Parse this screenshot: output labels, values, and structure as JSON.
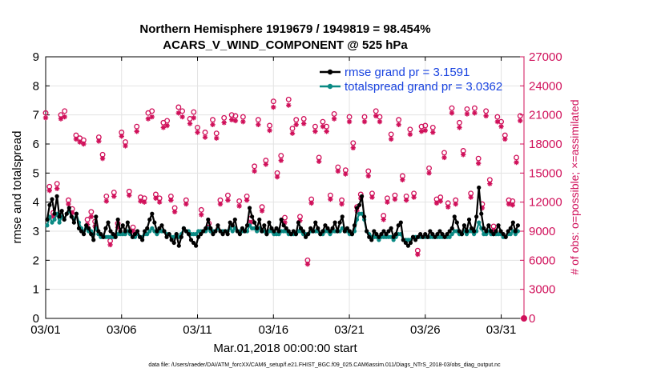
{
  "chart_data": {
    "type": "line",
    "title_line1": "Northern Hemisphere 1919679 / 1949819 = 98.454%",
    "title_line2": "ACARS_V_WIND_COMPONENT @ 525 hPa",
    "xlabel": "Mar.01,2018 00:00:00 start",
    "ylabel": "rmse and totalspread",
    "ylabel_right": "# of obs: o=possible; ×=assimilated",
    "xlim": [
      0,
      31.5
    ],
    "ylim": [
      0,
      9
    ],
    "ylim_right": [
      0,
      27000
    ],
    "x_tick_values": [
      0,
      5,
      10,
      15,
      20,
      25,
      30
    ],
    "x_tick_labels": [
      "03/01",
      "03/06",
      "03/11",
      "03/16",
      "03/21",
      "03/26",
      "03/31"
    ],
    "y_tick_labels": [
      "0",
      "1",
      "2",
      "3",
      "4",
      "5",
      "6",
      "7",
      "8",
      "9"
    ],
    "y_right_tick_labels": [
      "0",
      "3000",
      "6000",
      "9000",
      "12000",
      "15000",
      "18000",
      "21000",
      "24000",
      "27000"
    ],
    "legend_position": "top-right",
    "colors": {
      "rmse": "#000000",
      "spread": "#0a8a84",
      "obs": "#d0105a",
      "legend_text": "#1a44e0"
    },
    "series": [
      {
        "name": "rmse grand pr = 3.1591",
        "key": "rmse",
        "values": [
          3.4,
          3.9,
          4.1,
          3.6,
          4.2,
          3.5,
          3.7,
          3.4,
          3.6,
          3.8,
          3.5,
          3.3,
          3.6,
          3.1,
          3.0,
          2.9,
          3.2,
          3.1,
          2.9,
          2.7,
          3.5,
          3.0,
          2.9,
          2.8,
          3.1,
          3.3,
          3.0,
          2.9,
          2.8,
          3.4,
          3.0,
          3.2,
          3.0,
          3.3,
          3.0,
          2.8,
          2.9,
          3.0,
          2.8,
          2.7,
          3.0,
          3.1,
          3.4,
          3.6,
          3.3,
          3.0,
          3.1,
          3.2,
          3.0,
          2.8,
          2.9,
          2.7,
          2.6,
          2.9,
          2.5,
          2.8,
          3.1,
          3.0,
          2.9,
          2.7,
          2.6,
          2.5,
          2.8,
          2.9,
          3.0,
          3.1,
          3.4,
          3.1,
          2.9,
          3.0,
          3.2,
          3.0,
          2.9,
          3.0,
          2.9,
          3.3,
          3.2,
          3.4,
          3.0,
          2.9,
          3.1,
          3.0,
          3.2,
          3.8,
          3.5,
          3.3,
          3.1,
          3.4,
          3.0,
          3.2,
          2.9,
          3.3,
          3.1,
          3.0,
          3.1,
          3.0,
          3.4,
          3.2,
          3.1,
          3.0,
          2.9,
          3.0,
          2.9,
          3.3,
          3.1,
          3.0,
          2.8,
          2.9,
          3.1,
          3.0,
          3.3,
          3.1,
          2.9,
          3.0,
          3.2,
          3.1,
          3.0,
          3.1,
          3.3,
          3.0,
          3.3,
          3.5,
          3.0,
          3.1,
          3.0,
          2.9,
          3.2,
          3.8,
          3.9,
          4.2,
          3.5,
          3.0,
          2.8,
          2.7,
          3.0,
          2.9,
          2.8,
          2.9,
          3.0,
          2.9,
          3.0,
          3.1,
          2.8,
          2.9,
          3.2,
          3.3,
          2.7,
          2.6,
          2.5,
          2.6,
          2.8,
          2.7,
          2.8,
          2.9,
          2.8,
          2.9,
          2.8,
          3.0,
          2.9,
          2.8,
          2.9,
          3.0,
          2.9,
          2.8,
          2.9,
          3.0,
          3.1,
          3.5,
          3.3,
          3.0,
          2.9,
          3.2,
          3.0,
          3.4,
          3.1,
          3.0,
          3.5,
          4.5,
          3.6,
          3.1,
          3.0,
          3.2,
          3.0,
          2.9,
          3.0,
          3.2,
          3.0,
          2.9,
          2.8,
          3.0,
          3.1,
          3.3,
          3.0,
          3.2
        ]
      },
      {
        "name": "totalspread grand pr = 3.0362",
        "key": "spread",
        "values": [
          3.2,
          3.5,
          3.3,
          3.4,
          3.6,
          3.3,
          3.5,
          3.4,
          3.6,
          3.7,
          3.5,
          3.4,
          3.6,
          3.3,
          3.1,
          3.0,
          3.1,
          3.0,
          3.0,
          2.9,
          3.1,
          2.9,
          2.8,
          2.8,
          2.8,
          2.8,
          2.8,
          2.8,
          2.8,
          2.9,
          2.9,
          2.9,
          2.9,
          3.0,
          2.9,
          2.8,
          2.8,
          2.9,
          2.8,
          2.8,
          2.9,
          2.9,
          3.0,
          3.1,
          3.0,
          2.9,
          3.0,
          3.0,
          3.0,
          2.9,
          2.9,
          2.8,
          2.8,
          2.9,
          2.8,
          2.9,
          3.1,
          3.0,
          3.0,
          2.9,
          2.9,
          2.9,
          3.0,
          3.0,
          3.0,
          3.0,
          3.1,
          3.0,
          3.0,
          3.0,
          3.1,
          3.0,
          3.0,
          3.0,
          3.0,
          3.1,
          3.0,
          3.1,
          3.0,
          3.0,
          3.0,
          3.0,
          3.0,
          3.2,
          3.1,
          3.1,
          3.0,
          3.1,
          3.0,
          3.0,
          2.9,
          3.0,
          3.0,
          2.9,
          2.9,
          2.9,
          3.0,
          3.0,
          3.0,
          2.9,
          2.9,
          2.9,
          2.9,
          3.0,
          3.0,
          2.9,
          2.9,
          2.9,
          3.0,
          3.0,
          3.0,
          3.0,
          2.9,
          2.9,
          3.0,
          3.0,
          2.9,
          3.0,
          3.0,
          3.0,
          3.0,
          3.1,
          3.0,
          3.0,
          2.9,
          2.9,
          3.0,
          3.4,
          3.6,
          3.6,
          3.4,
          3.0,
          2.9,
          2.8,
          2.8,
          2.8,
          2.7,
          2.8,
          2.8,
          2.8,
          2.8,
          2.8,
          2.7,
          2.8,
          2.9,
          2.9,
          2.7,
          2.7,
          2.7,
          2.7,
          2.8,
          2.8,
          2.8,
          2.8,
          2.8,
          2.8,
          2.8,
          2.8,
          2.8,
          2.8,
          2.8,
          2.8,
          2.8,
          2.8,
          2.8,
          2.8,
          2.9,
          3.0,
          3.0,
          2.9,
          2.9,
          3.0,
          2.9,
          3.0,
          3.0,
          2.9,
          3.0,
          3.3,
          3.1,
          2.9,
          2.9,
          3.0,
          2.9,
          2.9,
          2.9,
          2.9,
          2.9,
          2.8,
          2.8,
          2.9,
          2.9,
          3.0,
          2.9,
          3.0
        ]
      },
      {
        "name": "obs possible",
        "key": "possible",
        "marker": "o",
        "axis": "right",
        "x": [
          0.0,
          0.25,
          0.5,
          0.75,
          1.0,
          1.25,
          1.5,
          1.75,
          2.0,
          2.25,
          2.5,
          2.75,
          3.0,
          3.25,
          3.5,
          3.75,
          4.0,
          4.25,
          4.5,
          4.75,
          5.0,
          5.25,
          5.5,
          5.75,
          6.0,
          6.25,
          6.5,
          6.75,
          7.0,
          7.25,
          7.5,
          7.75,
          8.0,
          8.25,
          8.5,
          8.75,
          9.0,
          9.25,
          9.5,
          9.75,
          10.0,
          10.25,
          10.5,
          10.75,
          11.0,
          11.25,
          11.5,
          11.75,
          12.0,
          12.25,
          12.5,
          12.75,
          13.0,
          13.25,
          13.5,
          13.75,
          14.0,
          14.25,
          14.5,
          14.75,
          15.0,
          15.25,
          15.5,
          15.75,
          16.0,
          16.25,
          16.5,
          16.75,
          17.0,
          17.25,
          17.5,
          17.75,
          18.0,
          18.25,
          18.5,
          18.75,
          19.0,
          19.25,
          19.5,
          19.75,
          20.0,
          20.25,
          20.5,
          20.75,
          21.0,
          21.25,
          21.5,
          21.75,
          22.0,
          22.25,
          22.5,
          22.75,
          23.0,
          23.25,
          23.5,
          23.75,
          24.0,
          24.25,
          24.5,
          24.75,
          25.0,
          25.25,
          25.5,
          25.75,
          26.0,
          26.25,
          26.5,
          26.75,
          27.0,
          27.25,
          27.5,
          27.75,
          28.0,
          28.25,
          28.5,
          28.75,
          29.0,
          29.25,
          29.5,
          29.75,
          30.0,
          30.25,
          30.5,
          30.75,
          31.0,
          31.25
        ],
        "values": [
          21200,
          13600,
          10900,
          13900,
          21000,
          21400,
          12200,
          11300,
          18900,
          18600,
          18400,
          10200,
          11000,
          10000,
          18700,
          16900,
          12600,
          8000,
          13000,
          9800,
          19200,
          18200,
          13100,
          9400,
          19800,
          12500,
          12400,
          21200,
          21400,
          12800,
          12400,
          20200,
          20400,
          12600,
          11400,
          21800,
          21400,
          12200,
          20600,
          21300,
          19700,
          11200,
          19200,
          9800,
          20500,
          19100,
          12200,
          20700,
          12700,
          21000,
          20900,
          12100,
          20800,
          12600,
          10300,
          15700,
          20500,
          11500,
          16300,
          19900,
          22400,
          15000,
          16800,
          10400,
          22600,
          19600,
          20500,
          10500,
          20600,
          6000,
          12300,
          19800,
          16600,
          20300,
          19800,
          12700,
          21100,
          15600,
          12200,
          15300,
          20800,
          18100,
          11500,
          12800,
          20800,
          15200,
          12900,
          21400,
          20800,
          10600,
          12400,
          19000,
          12700,
          20500,
          14700,
          12600,
          19500,
          12900,
          7000,
          19800,
          19900,
          15500,
          19700,
          12300,
          12500,
          17100,
          11900,
          21700,
          12200,
          20200,
          17300,
          21600,
          12900,
          21700,
          16500,
          11800,
          21400,
          14300,
          9500,
          20800,
          20300,
          18900,
          12200,
          12100,
          16600,
          20900
        ]
      },
      {
        "name": "obs assimilated",
        "key": "assimilated",
        "marker": "x",
        "axis": "right",
        "values": [
          20700,
          13200,
          10500,
          13400,
          20600,
          20800,
          11800,
          10900,
          18500,
          18200,
          18000,
          9700,
          10500,
          9500,
          18300,
          16500,
          12100,
          7600,
          12600,
          9400,
          18800,
          17800,
          12700,
          9000,
          19300,
          12100,
          12000,
          20600,
          20800,
          12400,
          12000,
          19700,
          19900,
          12200,
          11000,
          21200,
          20800,
          11800,
          20100,
          20700,
          19200,
          10700,
          18700,
          9400,
          20000,
          18600,
          11800,
          20200,
          12200,
          20500,
          20400,
          11600,
          20300,
          12200,
          9900,
          15200,
          20000,
          11100,
          15900,
          19400,
          21800,
          14600,
          16300,
          9900,
          22000,
          19100,
          20000,
          10100,
          20100,
          5600,
          11900,
          19300,
          16200,
          19800,
          19300,
          12300,
          20600,
          15200,
          11800,
          14900,
          20300,
          17600,
          11100,
          12400,
          20300,
          14700,
          12500,
          20900,
          20300,
          10200,
          12000,
          18500,
          12300,
          20000,
          14300,
          12200,
          19000,
          12500,
          6600,
          19300,
          19400,
          15000,
          19200,
          11900,
          12100,
          16600,
          11500,
          21200,
          11800,
          19700,
          16900,
          21100,
          12500,
          21200,
          16000,
          11400,
          20900,
          13900,
          9100,
          20300,
          19800,
          18500,
          11800,
          11700,
          16100,
          20400
        ]
      }
    ],
    "legend_entries": [
      "rmse grand pr = 3.1591",
      "totalspread grand pr = 3.0362"
    ]
  },
  "footer": "data file: /Users/raeder/DAI/ATM_forcXX/CAM6_setup/f.e21.FHIST_BGC.f09_025.CAM6assim.011/Diags_NTrS_2018-03/obs_diag_output.nc"
}
